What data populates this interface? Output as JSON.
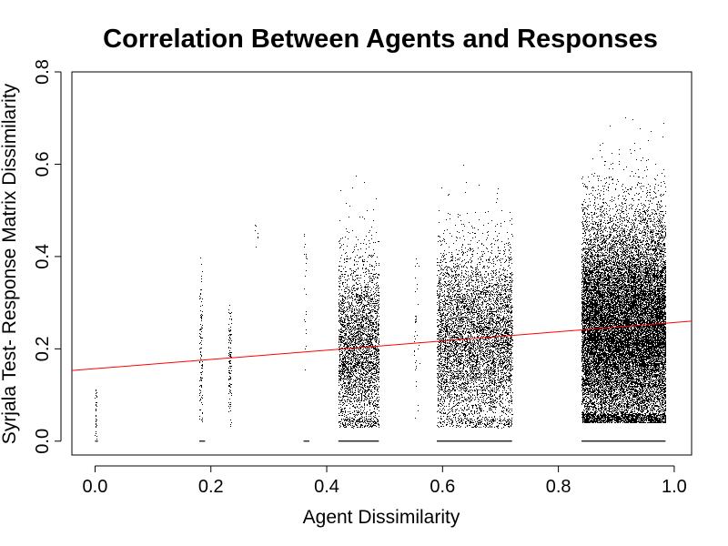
{
  "chart_data": {
    "type": "scatter",
    "title": "Correlation Between Agents and Responses",
    "xlabel": "Agent Dissimilarity",
    "ylabel": "Syrjala Test- Response Matrix Dissimilarity",
    "xlim": [
      -0.04,
      1.03
    ],
    "ylim": [
      -0.03,
      0.8
    ],
    "xticks": [
      0.0,
      0.2,
      0.4,
      0.6,
      0.8,
      1.0
    ],
    "xtick_labels": [
      "0.0",
      "0.2",
      "0.4",
      "0.6",
      "0.8",
      "1.0"
    ],
    "yticks": [
      0.0,
      0.2,
      0.4,
      0.6,
      0.8
    ],
    "ytick_labels": [
      "0.0",
      "0.2",
      "0.4",
      "0.6",
      "0.8"
    ],
    "point_color": "#000000",
    "fit_line_color": "#ff0000",
    "fit_line": {
      "intercept": 0.157,
      "slope": 0.1
    },
    "clusters": [
      {
        "x_min": 0.0,
        "x_max": 0.002,
        "y_mean": 0.06,
        "y_sd": 0.03,
        "y_min": 0.0,
        "y_max": 0.12,
        "n": 40
      },
      {
        "x_min": 0.18,
        "x_max": 0.185,
        "y_mean": 0.2,
        "y_sd": 0.09,
        "y_min": 0.04,
        "y_max": 0.4,
        "n": 120
      },
      {
        "x_min": 0.23,
        "x_max": 0.235,
        "y_mean": 0.18,
        "y_sd": 0.07,
        "y_min": 0.03,
        "y_max": 0.32,
        "n": 120
      },
      {
        "x_min": 0.275,
        "x_max": 0.28,
        "y_mean": 0.45,
        "y_sd": 0.02,
        "y_min": 0.42,
        "y_max": 0.48,
        "n": 8
      },
      {
        "x_min": 0.36,
        "x_max": 0.365,
        "y_mean": 0.35,
        "y_sd": 0.1,
        "y_min": 0.05,
        "y_max": 0.45,
        "n": 25
      },
      {
        "x_min": 0.42,
        "x_max": 0.49,
        "y_mean": 0.2,
        "y_sd": 0.1,
        "y_min": 0.03,
        "y_max": 0.68,
        "n": 3500
      },
      {
        "x_min": 0.55,
        "x_max": 0.56,
        "y_mean": 0.22,
        "y_sd": 0.1,
        "y_min": 0.05,
        "y_max": 0.4,
        "n": 40
      },
      {
        "x_min": 0.59,
        "x_max": 0.72,
        "y_mean": 0.22,
        "y_sd": 0.1,
        "y_min": 0.03,
        "y_max": 0.67,
        "n": 6000
      },
      {
        "x_min": 0.84,
        "x_max": 0.985,
        "y_mean": 0.24,
        "y_sd": 0.12,
        "y_min": 0.04,
        "y_max": 0.77,
        "n": 22000
      }
    ],
    "zero_row": {
      "y": 0.0,
      "x_ranges": [
        [
          0.0,
          0.005
        ],
        [
          0.18,
          0.19
        ],
        [
          0.36,
          0.37
        ],
        [
          0.42,
          0.49
        ],
        [
          0.59,
          0.72
        ],
        [
          0.84,
          0.985
        ]
      ]
    }
  }
}
